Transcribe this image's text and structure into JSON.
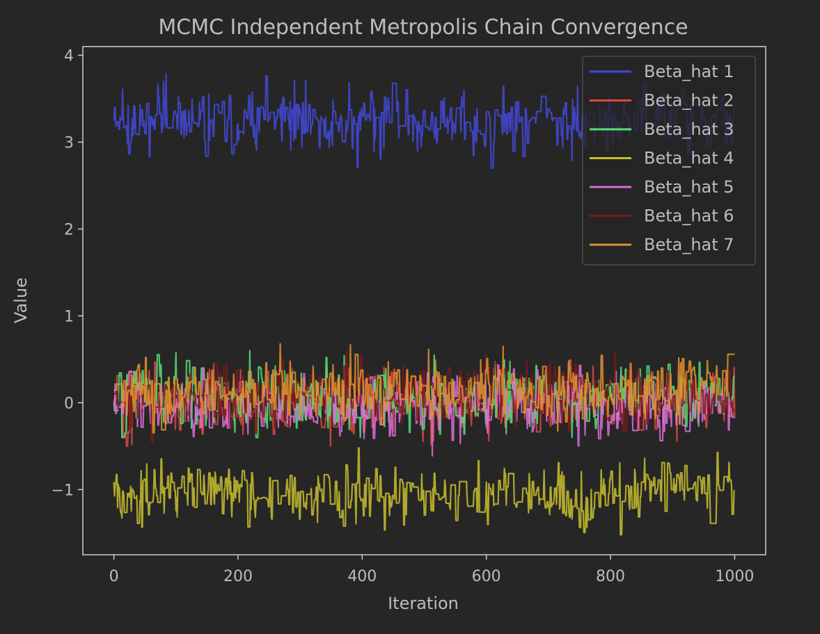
{
  "chart_data": {
    "type": "line",
    "title": "MCMC Independent Metropolis Chain Convergence",
    "xlabel": "Iteration",
    "ylabel": "Value",
    "xlim": [
      -50,
      1050
    ],
    "ylim": [
      -1.75,
      4.1
    ],
    "xticks": [
      0,
      200,
      400,
      600,
      800,
      1000
    ],
    "xtick_labels": [
      "0",
      "200",
      "400",
      "600",
      "800",
      "1000"
    ],
    "yticks": [
      -1,
      0,
      1,
      2,
      3,
      4
    ],
    "ytick_labels": [
      "−1",
      "0",
      "1",
      "2",
      "3",
      "4"
    ],
    "grid": false,
    "legend_position": "top-right",
    "iterations": 1000,
    "series": [
      {
        "name": "Beta_hat 1",
        "color": "#4349d9",
        "mean": 3.25,
        "spread": 0.2,
        "min": 2.7,
        "max": 3.83
      },
      {
        "name": "Beta_hat 2",
        "color": "#d94a42",
        "mean": 0.0,
        "spread": 0.2,
        "min": -0.5,
        "max": 0.55
      },
      {
        "name": "Beta_hat 3",
        "color": "#56e07a",
        "mean": 0.05,
        "spread": 0.2,
        "min": -0.4,
        "max": 0.6
      },
      {
        "name": "Beta_hat 4",
        "color": "#c9c02e",
        "mean": -1.05,
        "spread": 0.2,
        "min": -1.52,
        "max": -0.52
      },
      {
        "name": "Beta_hat 5",
        "color": "#dd6ddb",
        "mean": -0.05,
        "spread": 0.2,
        "min": -0.65,
        "max": 0.45
      },
      {
        "name": "Beta_hat 6",
        "color": "#7c1a1a",
        "mean": 0.1,
        "spread": 0.2,
        "min": -0.45,
        "max": 0.9
      },
      {
        "name": "Beta_hat 7",
        "color": "#e0932f",
        "mean": 0.15,
        "spread": 0.2,
        "min": -0.4,
        "max": 0.68
      }
    ]
  }
}
